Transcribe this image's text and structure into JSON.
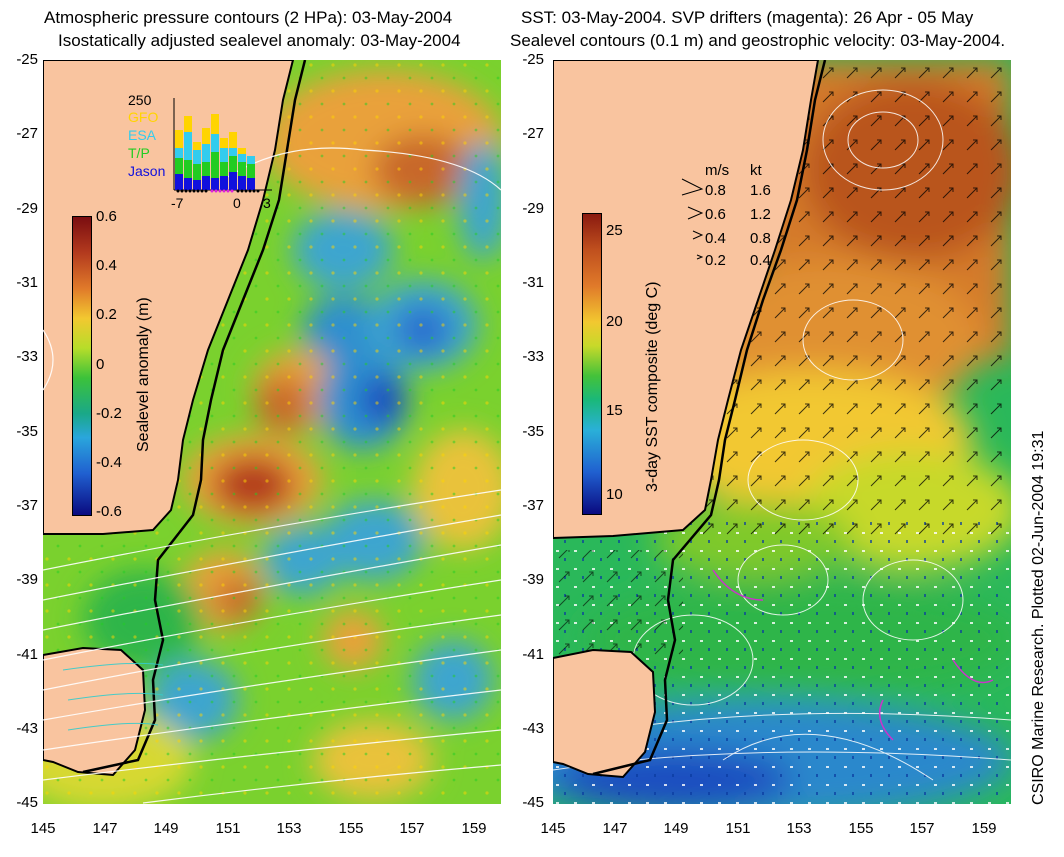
{
  "left_panel": {
    "title_line1": "Atmospheric pressure contours (2 HPa): 03-May-2004",
    "title_line2": "Isostatically adjusted sealevel anomaly: 03-May-2004",
    "colorbar": {
      "label": "Sealevel anomaly (m)",
      "ticks": [
        "0.6",
        "0.4",
        "0.2",
        "0",
        "-0.2",
        "-0.4",
        "-0.6"
      ]
    },
    "inset": {
      "ymax_label": "250",
      "legend": [
        {
          "name": "GFO",
          "color": "#ffd400"
        },
        {
          "name": "ESA",
          "color": "#33ccee"
        },
        {
          "name": "T/P",
          "color": "#22cc22"
        },
        {
          "name": "Jason",
          "color": "#1111dd"
        }
      ],
      "xticks": [
        "-7",
        "0",
        "3"
      ]
    }
  },
  "right_panel": {
    "title_line1": "SST: 03-May-2004. SVP drifters (magenta): 26 Apr - 05 May",
    "title_line2": "Sealevel contours (0.1 m) and geostrophic velocity: 03-May-2004.",
    "colorbar": {
      "label": "3-day SST composite (deg C)",
      "ticks": [
        "25",
        "20",
        "15",
        "10"
      ]
    },
    "velocity_legend": {
      "header_ms": "m/s",
      "header_kt": "kt",
      "rows": [
        {
          "ms": "0.8",
          "kt": "1.6"
        },
        {
          "ms": "0.6",
          "kt": "1.2"
        },
        {
          "ms": "0.4",
          "kt": "0.8"
        },
        {
          "ms": "0.2",
          "kt": "0.4"
        }
      ]
    },
    "credit": "CSIRO Marine Research. Plotted 02-Jun-2004 19:31"
  },
  "axes": {
    "y_labels": [
      "-25",
      "-27",
      "-29",
      "-31",
      "-33",
      "-35",
      "-37",
      "-39",
      "-41",
      "-43",
      "-45"
    ],
    "x_labels": [
      "145",
      "147",
      "149",
      "151",
      "153",
      "155",
      "157",
      "159"
    ]
  },
  "colors": {
    "land": "#f9c49f",
    "coast": "#000000"
  }
}
